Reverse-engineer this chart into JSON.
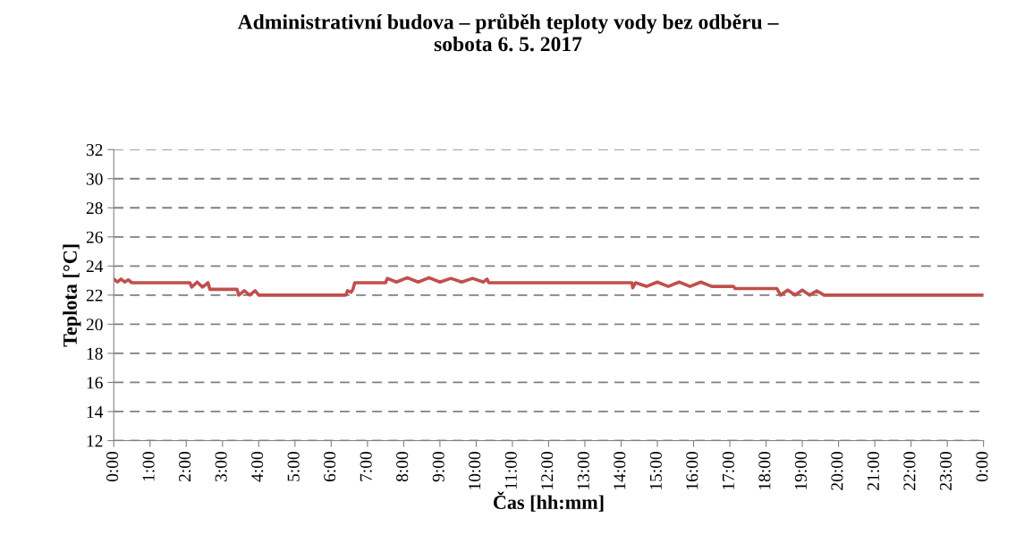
{
  "chart_data": {
    "type": "line",
    "title": "Administrativní budova – průběh teploty vody bez odběru –\nsobota 6. 5. 2017",
    "xlabel": "Čas [hh:mm]",
    "ylabel": "Teplota [°C]",
    "series": [
      {
        "color": "#c0504d",
        "x": [
          0,
          0.1,
          0.2,
          0.3,
          0.4,
          0.5,
          2.1,
          2.15,
          2.3,
          2.45,
          2.6,
          2.65,
          3.4,
          3.45,
          3.6,
          3.75,
          3.9,
          4.0,
          6.4,
          6.45,
          6.55,
          6.6,
          6.65,
          7.5,
          7.55,
          7.8,
          8.1,
          8.4,
          8.7,
          9.0,
          9.3,
          9.6,
          9.9,
          10.2,
          10.3,
          10.35,
          14.3,
          14.32,
          14.4,
          14.7,
          15.0,
          15.3,
          15.6,
          15.9,
          16.2,
          16.5,
          17.1,
          17.15,
          18.3,
          18.4,
          18.6,
          18.8,
          19.0,
          19.2,
          19.4,
          19.6,
          24
        ],
        "values": [
          23.1,
          22.9,
          23.1,
          22.9,
          23.05,
          22.85,
          22.85,
          22.55,
          22.9,
          22.55,
          22.85,
          22.4,
          22.4,
          22.0,
          22.3,
          22.0,
          22.3,
          22.0,
          22.0,
          22.3,
          22.2,
          22.4,
          22.85,
          22.85,
          23.15,
          22.9,
          23.2,
          22.9,
          23.2,
          22.9,
          23.15,
          22.9,
          23.15,
          22.9,
          23.1,
          22.85,
          22.85,
          22.5,
          22.85,
          22.6,
          22.9,
          22.6,
          22.9,
          22.6,
          22.9,
          22.6,
          22.6,
          22.45,
          22.45,
          22.0,
          22.35,
          22.0,
          22.35,
          22.0,
          22.3,
          22.0,
          22.0
        ]
      }
    ],
    "xlim": [
      0,
      24
    ],
    "xticks": [
      {
        "value": 0,
        "label": "0:00"
      },
      {
        "value": 1,
        "label": "1:00"
      },
      {
        "value": 2,
        "label": "2:00"
      },
      {
        "value": 3,
        "label": "3:00"
      },
      {
        "value": 4,
        "label": "4:00"
      },
      {
        "value": 5,
        "label": "5:00"
      },
      {
        "value": 6,
        "label": "6:00"
      },
      {
        "value": 7,
        "label": "7:00"
      },
      {
        "value": 8,
        "label": "8:00"
      },
      {
        "value": 9,
        "label": "9:00"
      },
      {
        "value": 10,
        "label": "10:00"
      },
      {
        "value": 11,
        "label": "11:00"
      },
      {
        "value": 12,
        "label": "12:00"
      },
      {
        "value": 13,
        "label": "13:00"
      },
      {
        "value": 14,
        "label": "14:00"
      },
      {
        "value": 15,
        "label": "15:00"
      },
      {
        "value": 16,
        "label": "16:00"
      },
      {
        "value": 17,
        "label": "17:00"
      },
      {
        "value": 18,
        "label": "18:00"
      },
      {
        "value": 19,
        "label": "19:00"
      },
      {
        "value": 20,
        "label": "20:00"
      },
      {
        "value": 21,
        "label": "21:00"
      },
      {
        "value": 22,
        "label": "22:00"
      },
      {
        "value": 23,
        "label": "23:00"
      },
      {
        "value": 24,
        "label": "0:00"
      }
    ],
    "ylim": [
      12,
      32
    ],
    "yticks": [
      12,
      14,
      16,
      18,
      20,
      22,
      24,
      26,
      28,
      30,
      32
    ],
    "grid": "y",
    "line_style": "solid",
    "marker": "none"
  }
}
